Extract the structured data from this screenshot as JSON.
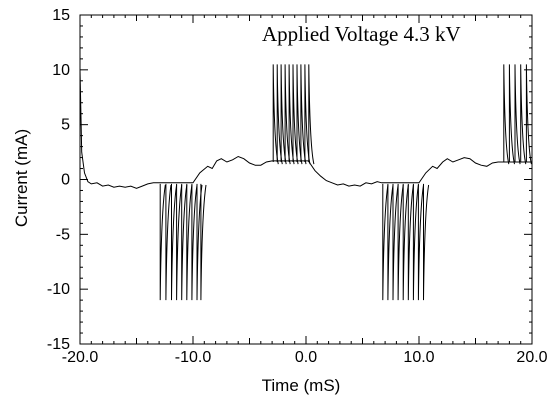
{
  "chart_data": {
    "type": "line",
    "title": "",
    "xlabel": "Time (mS)",
    "ylabel": "Current (mA)",
    "annotation": "Applied Voltage 4.3 kV",
    "xlim": [
      -20,
      20
    ],
    "ylim": [
      -15,
      15
    ],
    "x_ticks": [
      -20,
      -10,
      0,
      10,
      20
    ],
    "x_tick_labels": [
      "-20.0",
      "-10.0",
      "0.0",
      "10.0",
      "20.0"
    ],
    "y_ticks": [
      -15,
      -10,
      -5,
      0,
      5,
      10,
      15
    ],
    "y_tick_labels": [
      "-15",
      "-10",
      "-5",
      "0",
      "5",
      "10",
      "15"
    ],
    "grid": false,
    "line_color": "#000000",
    "series": [
      {
        "name": "",
        "baseline": [
          [
            -20.0,
            10.0
          ],
          [
            -19.85,
            2.5
          ],
          [
            -19.6,
            0.6
          ],
          [
            -19.3,
            -0.2
          ],
          [
            -19.0,
            -0.4
          ],
          [
            -18.5,
            -0.3
          ],
          [
            -18.0,
            -0.6
          ],
          [
            -17.5,
            -0.5
          ],
          [
            -17.0,
            -0.7
          ],
          [
            -16.5,
            -0.6
          ],
          [
            -16.0,
            -0.7
          ],
          [
            -15.5,
            -0.6
          ],
          [
            -15.0,
            -0.8
          ],
          [
            -14.5,
            -0.6
          ],
          [
            -14.0,
            -0.4
          ],
          [
            -13.5,
            -0.3
          ],
          [
            -13.2,
            -0.3
          ],
          [
            -10.0,
            -0.3
          ],
          [
            -9.4,
            0.6
          ],
          [
            -8.7,
            1.2
          ],
          [
            -8.3,
            1.0
          ],
          [
            -7.9,
            1.7
          ],
          [
            -7.5,
            1.9
          ],
          [
            -7.0,
            1.6
          ],
          [
            -6.5,
            1.8
          ],
          [
            -6.0,
            2.1
          ],
          [
            -5.5,
            1.9
          ],
          [
            -5.0,
            1.5
          ],
          [
            -4.5,
            1.3
          ],
          [
            -4.0,
            1.3
          ],
          [
            -3.5,
            1.6
          ],
          [
            -3.0,
            1.7
          ],
          [
            0.2,
            1.7
          ],
          [
            0.8,
            0.8
          ],
          [
            1.3,
            0.3
          ],
          [
            1.8,
            -0.1
          ],
          [
            2.3,
            -0.3
          ],
          [
            2.8,
            -0.5
          ],
          [
            3.3,
            -0.4
          ],
          [
            3.8,
            -0.6
          ],
          [
            4.3,
            -0.5
          ],
          [
            4.8,
            -0.6
          ],
          [
            5.3,
            -0.3
          ],
          [
            5.8,
            -0.4
          ],
          [
            6.3,
            -0.2
          ],
          [
            6.7,
            -0.3
          ],
          [
            10.0,
            -0.3
          ],
          [
            10.6,
            0.6
          ],
          [
            11.2,
            1.2
          ],
          [
            11.6,
            1.0
          ],
          [
            12.1,
            1.6
          ],
          [
            12.5,
            1.9
          ],
          [
            13.0,
            1.6
          ],
          [
            13.5,
            1.8
          ],
          [
            14.0,
            2.0
          ],
          [
            14.5,
            1.9
          ],
          [
            15.0,
            1.5
          ],
          [
            15.5,
            1.3
          ],
          [
            16.0,
            1.2
          ],
          [
            16.5,
            1.5
          ],
          [
            17.0,
            1.6
          ],
          [
            20.0,
            1.6
          ]
        ],
        "positive_pulses_ms": [
          -2.9,
          -2.55,
          -2.2,
          -1.85,
          -1.5,
          -1.15,
          -0.8,
          -0.45,
          -0.1,
          0.25,
          17.5,
          18.0,
          18.5,
          19.0,
          19.5
        ],
        "negative_pulses_ms": [
          -12.9,
          -12.4,
          -11.9,
          -11.45,
          -11.0,
          -10.55,
          -10.1,
          -9.65,
          -9.3,
          6.8,
          7.25,
          7.7,
          8.15,
          8.6,
          9.05,
          9.5,
          9.95,
          10.4
        ],
        "pulse_peak": 10.5,
        "pulse_trough": -11.0
      }
    ]
  }
}
